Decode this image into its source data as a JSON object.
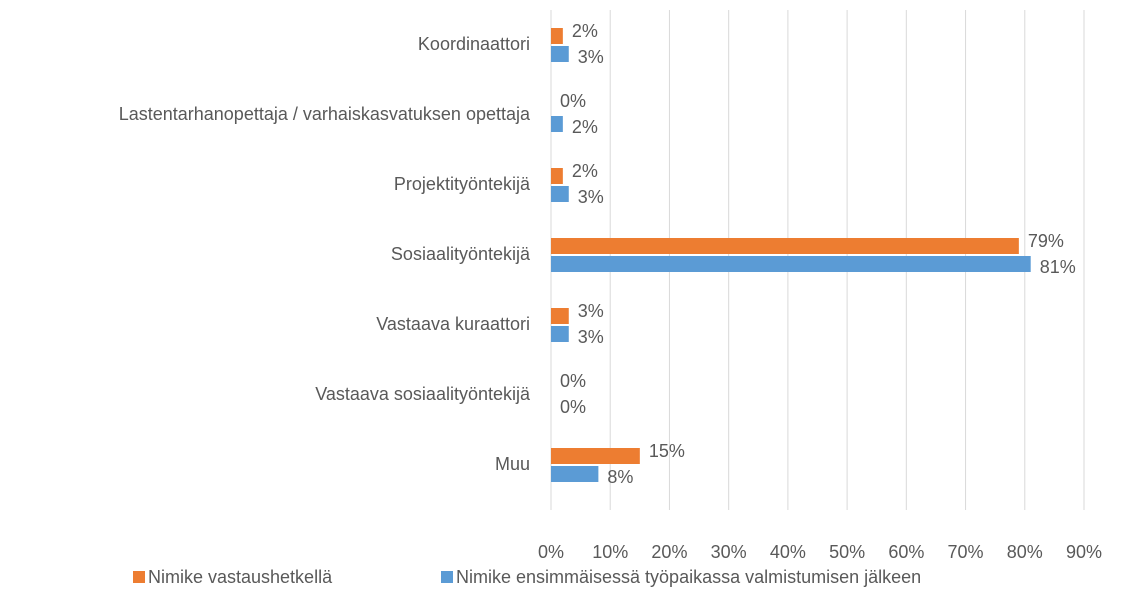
{
  "chart_data": {
    "type": "hbar",
    "categories": [
      "Koordinaattori",
      "Lastentarhanopettaja / varhaiskasvatuksen opettaja",
      "Projektityöntekijä",
      "Sosiaalityöntekijä",
      "Vastaava kuraattori",
      "Vastaava sosiaalityöntekijä",
      "Muu"
    ],
    "series": [
      {
        "name": "Nimike vastaushetkellä",
        "color": "#ed7d31",
        "values": [
          2,
          0,
          2,
          79,
          3,
          0,
          15
        ],
        "value_labels": [
          "2%",
          "0%",
          "2%",
          "79%",
          "3%",
          "0%",
          "15%"
        ]
      },
      {
        "name": "Nimike ensimmäisessä työpaikassa valmistumisen jälkeen",
        "color": "#5b9bd5",
        "values": [
          3,
          2,
          3,
          81,
          3,
          0,
          8
        ],
        "value_labels": [
          "3%",
          "2%",
          "3%",
          "81%",
          "3%",
          "0%",
          "8%"
        ]
      }
    ],
    "xlim": [
      0,
      90
    ],
    "xticks": [
      {
        "value": 0,
        "label": "0%"
      },
      {
        "value": 10,
        "label": "10%"
      },
      {
        "value": 20,
        "label": "20%"
      },
      {
        "value": 30,
        "label": "30%"
      },
      {
        "value": 40,
        "label": "40%"
      },
      {
        "value": 50,
        "label": "50%"
      },
      {
        "value": 60,
        "label": "60%"
      },
      {
        "value": 70,
        "label": "70%"
      },
      {
        "value": 80,
        "label": "80%"
      },
      {
        "value": 90,
        "label": "90%"
      }
    ],
    "grid": true,
    "legend": "bottom"
  }
}
